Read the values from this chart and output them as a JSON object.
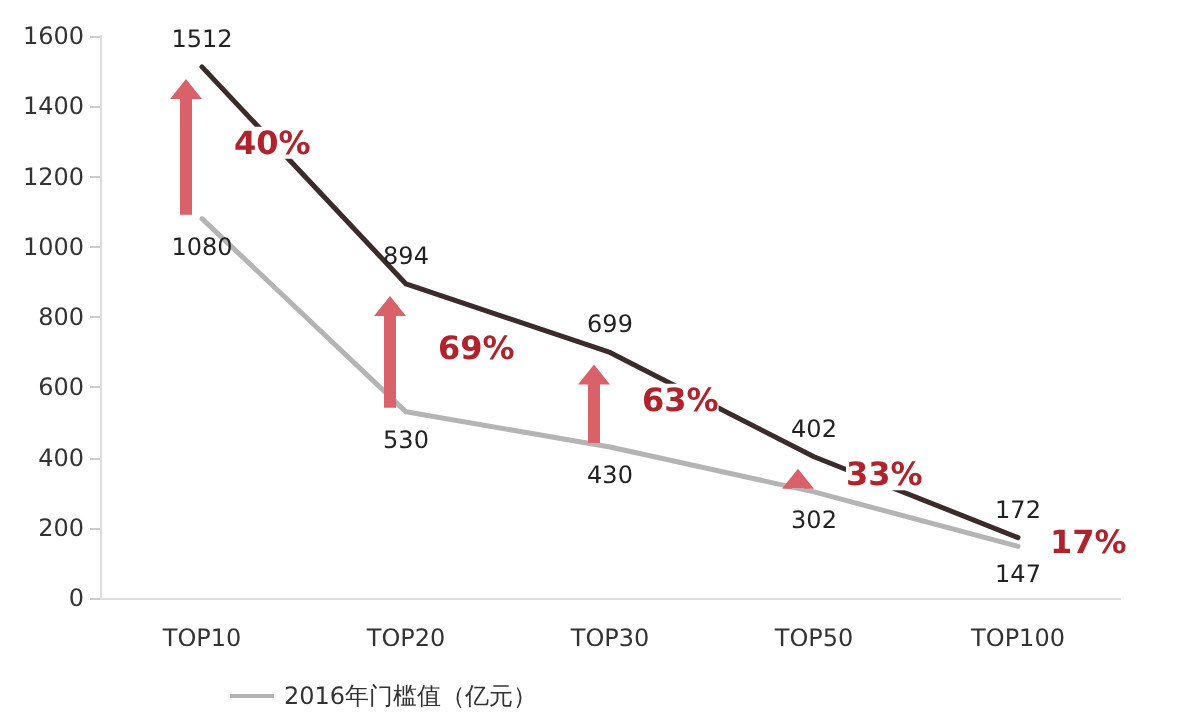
{
  "chart_data": {
    "type": "line",
    "categories": [
      "TOP10",
      "TOP20",
      "TOP30",
      "TOP50",
      "TOP100"
    ],
    "series": [
      {
        "color": "#3b2b2b",
        "values": [
          1512,
          894,
          699,
          402,
          172
        ]
      },
      {
        "name": "2016年门槛值（亿元）",
        "color": "#b4b4b4",
        "values": [
          1080,
          530,
          430,
          302,
          147
        ]
      }
    ],
    "ylim": [
      0,
      1600
    ],
    "yticks": [
      0,
      200,
      400,
      600,
      800,
      1000,
      1200,
      1400,
      1600
    ],
    "grid": false,
    "legend": "bottom",
    "marker": "none",
    "line_style": "solid",
    "data_labels": true,
    "annotations": [
      "40%",
      "69%",
      "63%",
      "33%",
      "17%"
    ]
  }
}
